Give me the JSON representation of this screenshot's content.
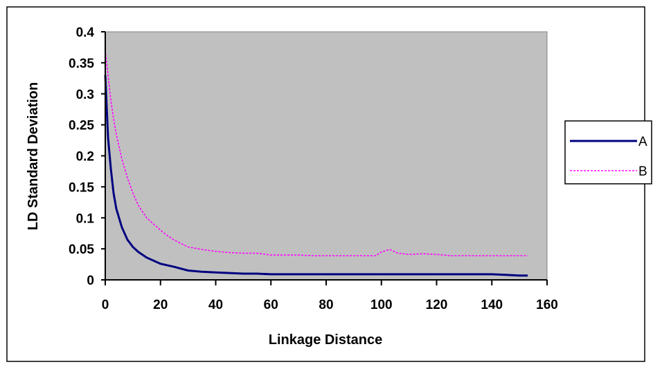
{
  "chart_data": {
    "type": "line",
    "title": "",
    "xlabel": "Linkage Distance",
    "ylabel": "LD Standard Deviation",
    "xlim": [
      0,
      160
    ],
    "ylim": [
      0,
      0.4
    ],
    "x_ticks": [
      "0",
      "20",
      "40",
      "60",
      "80",
      "100",
      "120",
      "140",
      "160"
    ],
    "y_ticks": [
      "0",
      "0.05",
      "0.1",
      "0.15",
      "0.2",
      "0.25",
      "0.3",
      "0.35",
      "0.4"
    ],
    "grid": false,
    "plot_background": "#c0c0c0",
    "legend_position": "right",
    "series": [
      {
        "name": "A",
        "color": "#000080",
        "style": "solid",
        "x": [
          0,
          1,
          2,
          3,
          4,
          5,
          6,
          8,
          10,
          12,
          15,
          18,
          20,
          25,
          30,
          35,
          40,
          45,
          50,
          55,
          60,
          70,
          80,
          90,
          100,
          110,
          120,
          130,
          140,
          145,
          150,
          153
        ],
        "y": [
          0.33,
          0.23,
          0.18,
          0.14,
          0.115,
          0.1,
          0.085,
          0.065,
          0.053,
          0.045,
          0.036,
          0.03,
          0.026,
          0.021,
          0.015,
          0.013,
          0.012,
          0.011,
          0.01,
          0.01,
          0.009,
          0.009,
          0.009,
          0.009,
          0.009,
          0.009,
          0.009,
          0.009,
          0.009,
          0.008,
          0.007,
          0.007
        ]
      },
      {
        "name": "B",
        "color": "#ff00ff",
        "style": "dotted",
        "x": [
          0,
          1,
          2,
          3,
          4,
          5,
          6,
          8,
          10,
          12,
          15,
          18,
          20,
          22,
          25,
          30,
          35,
          40,
          45,
          50,
          55,
          60,
          65,
          70,
          75,
          80,
          90,
          98,
          100,
          103,
          106,
          110,
          115,
          120,
          125,
          130,
          140,
          150,
          153
        ],
        "y": [
          0.37,
          0.33,
          0.29,
          0.26,
          0.235,
          0.215,
          0.195,
          0.165,
          0.14,
          0.12,
          0.1,
          0.088,
          0.08,
          0.073,
          0.064,
          0.053,
          0.049,
          0.046,
          0.044,
          0.043,
          0.043,
          0.04,
          0.04,
          0.04,
          0.039,
          0.039,
          0.039,
          0.039,
          0.045,
          0.049,
          0.043,
          0.041,
          0.042,
          0.041,
          0.039,
          0.039,
          0.039,
          0.039,
          0.039
        ]
      }
    ]
  }
}
